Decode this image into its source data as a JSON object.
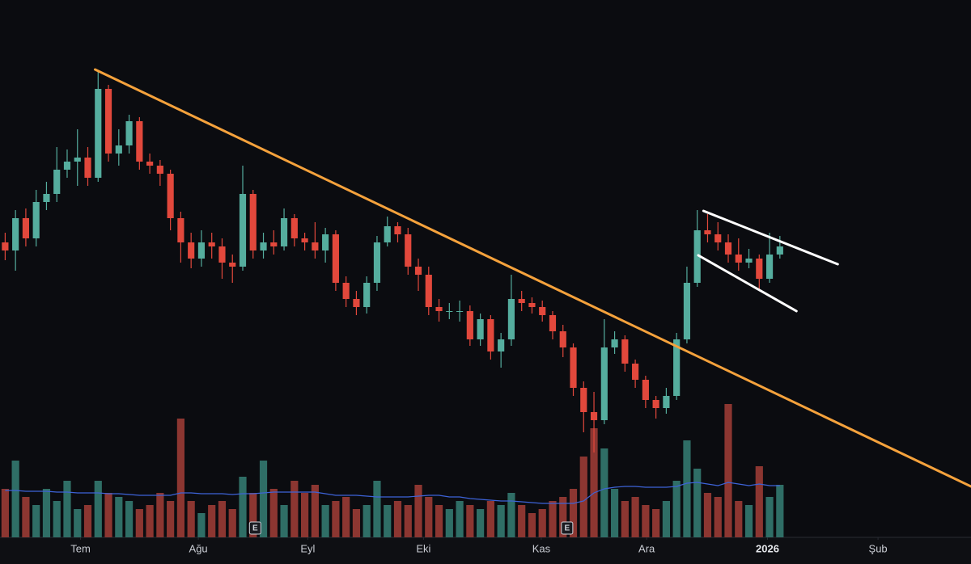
{
  "chart_data": {
    "type": "candlestick",
    "x": [
      0,
      1,
      2,
      3,
      4,
      5,
      6,
      7,
      8,
      9,
      10,
      11,
      12,
      13,
      14,
      15,
      16,
      17,
      18,
      19,
      20,
      21,
      22,
      23,
      24,
      25,
      26,
      27,
      28,
      29,
      30,
      31,
      32,
      33,
      34,
      35,
      36,
      37,
      38,
      39,
      40,
      41,
      42,
      43,
      44,
      45,
      46,
      47,
      48,
      49,
      50,
      51,
      52,
      53,
      54,
      55,
      56,
      57,
      58,
      59,
      60,
      61,
      62,
      63,
      64,
      65,
      66,
      67,
      68,
      69,
      70,
      71,
      72,
      73,
      74,
      75
    ],
    "open": [
      360,
      350,
      390,
      365,
      410,
      420,
      450,
      460,
      465,
      440,
      550,
      470,
      480,
      510,
      460,
      455,
      445,
      390,
      360,
      340,
      360,
      355,
      335,
      330,
      420,
      350,
      360,
      355,
      390,
      365,
      360,
      350,
      370,
      310,
      290,
      280,
      310,
      360,
      380,
      370,
      330,
      320,
      280,
      275,
      275,
      275,
      240,
      265,
      225,
      240,
      290,
      285,
      280,
      270,
      250,
      230,
      180,
      150,
      140,
      230,
      240,
      210,
      190,
      165,
      155,
      170,
      240,
      310,
      375,
      370,
      360,
      345,
      335,
      340,
      315,
      345
    ],
    "high": [
      372,
      400,
      402,
      425,
      435,
      478,
      475,
      500,
      478,
      572,
      555,
      500,
      518,
      515,
      470,
      462,
      450,
      398,
      372,
      375,
      372,
      365,
      345,
      455,
      425,
      372,
      375,
      402,
      395,
      372,
      385,
      378,
      375,
      318,
      300,
      318,
      368,
      392,
      385,
      378,
      340,
      330,
      290,
      285,
      288,
      282,
      272,
      270,
      248,
      320,
      300,
      292,
      288,
      275,
      258,
      235,
      188,
      175,
      265,
      250,
      245,
      215,
      195,
      170,
      180,
      248,
      330,
      400,
      395,
      385,
      370,
      365,
      352,
      345,
      372,
      368
    ],
    "low": [
      338,
      325,
      355,
      355,
      400,
      410,
      440,
      430,
      430,
      435,
      460,
      455,
      470,
      450,
      445,
      430,
      375,
      335,
      328,
      330,
      340,
      315,
      310,
      325,
      340,
      340,
      345,
      350,
      355,
      350,
      340,
      335,
      300,
      280,
      270,
      272,
      300,
      355,
      360,
      320,
      300,
      270,
      262,
      265,
      262,
      232,
      232,
      215,
      205,
      232,
      275,
      272,
      262,
      240,
      218,
      170,
      125,
      100,
      135,
      222,
      200,
      180,
      155,
      142,
      148,
      165,
      235,
      305,
      360,
      350,
      335,
      325,
      328,
      300,
      310,
      340
    ],
    "close": [
      350,
      390,
      365,
      410,
      420,
      450,
      460,
      465,
      440,
      550,
      470,
      480,
      510,
      460,
      455,
      445,
      390,
      360,
      340,
      360,
      355,
      335,
      330,
      420,
      350,
      360,
      355,
      390,
      365,
      360,
      350,
      370,
      310,
      290,
      280,
      310,
      360,
      380,
      370,
      330,
      320,
      280,
      275,
      275,
      275,
      240,
      265,
      225,
      240,
      290,
      285,
      280,
      270,
      250,
      230,
      180,
      150,
      140,
      230,
      240,
      210,
      190,
      165,
      155,
      170,
      240,
      310,
      375,
      370,
      360,
      345,
      335,
      340,
      315,
      345,
      355
    ],
    "volume": [
      60,
      95,
      50,
      40,
      60,
      45,
      70,
      35,
      40,
      70,
      55,
      50,
      45,
      35,
      40,
      55,
      45,
      147,
      45,
      30,
      40,
      45,
      35,
      75,
      55,
      95,
      60,
      40,
      70,
      55,
      65,
      40,
      45,
      50,
      35,
      40,
      70,
      40,
      45,
      40,
      65,
      50,
      40,
      35,
      45,
      40,
      35,
      45,
      40,
      55,
      40,
      30,
      35,
      45,
      50,
      60,
      100,
      135,
      110,
      60,
      45,
      50,
      40,
      35,
      45,
      70,
      120,
      85,
      55,
      50,
      165,
      45,
      40,
      88,
      50,
      65
    ],
    "volume_ma": [
      58,
      58,
      57,
      57,
      57,
      56,
      56,
      55,
      55,
      55,
      54,
      54,
      53,
      52,
      52,
      52,
      52,
      55,
      55,
      54,
      54,
      54,
      53,
      54,
      54,
      55,
      56,
      56,
      56,
      56,
      56,
      54,
      52,
      52,
      52,
      51,
      50,
      50,
      50,
      50,
      51,
      52,
      52,
      50,
      50,
      48,
      47,
      46,
      45,
      45,
      44,
      43,
      42,
      42,
      42,
      42,
      45,
      55,
      60,
      62,
      63,
      63,
      62,
      62,
      62,
      63,
      67,
      68,
      66,
      64,
      68,
      66,
      64,
      66,
      64,
      64
    ],
    "up_color": "#55ad9e",
    "down_color": "#e2483c",
    "volume_up_color": "#2f6e66",
    "volume_down_color": "#8c3631",
    "volume_ma_color": "#3d63d8",
    "xlim": [
      -0.5,
      93.5
    ],
    "ylim": [
      0,
      660
    ],
    "volume_lim": [
      0,
      180
    ],
    "xticks": [
      {
        "value": 7.3,
        "label": "Tem"
      },
      {
        "value": 18.7,
        "label": "Ağu"
      },
      {
        "value": 29.3,
        "label": "Eyl"
      },
      {
        "value": 40.5,
        "label": "Eki"
      },
      {
        "value": 51.9,
        "label": "Kas"
      },
      {
        "value": 62.1,
        "label": "Ara"
      },
      {
        "value": 73.8,
        "label": "2026"
      },
      {
        "value": 84.5,
        "label": "Şub"
      }
    ],
    "events": [
      {
        "x": 24.2,
        "label": "E"
      },
      {
        "x": 54.4,
        "label": "E"
      }
    ],
    "drawings": [
      {
        "color": "#f5a23c",
        "points": [
          [
            8.7,
            574
          ],
          [
            93.5,
            58
          ]
        ]
      },
      {
        "color": "#ffffff",
        "points": [
          [
            67.6,
            399
          ],
          [
            80.6,
            333
          ]
        ]
      },
      {
        "color": "#ffffff",
        "points": [
          [
            67.1,
            344
          ],
          [
            76.6,
            275
          ]
        ]
      }
    ]
  }
}
